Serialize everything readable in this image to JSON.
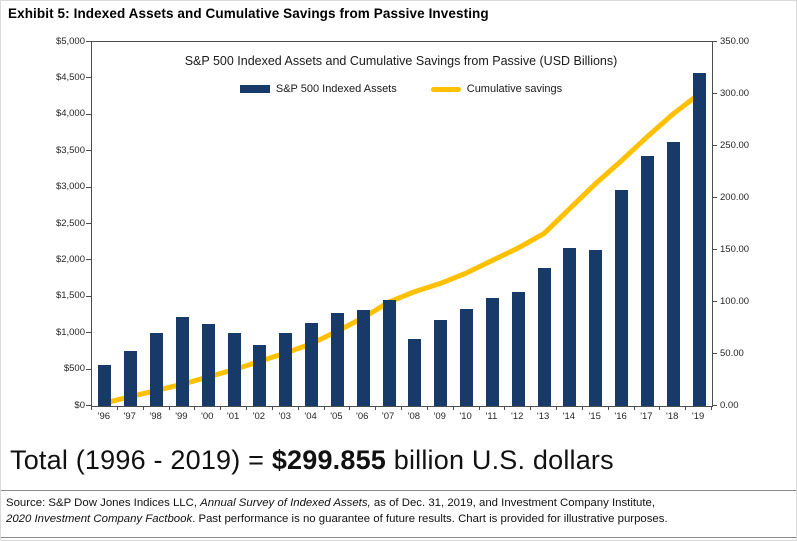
{
  "exhibit_title": "Exhibit 5: Indexed Assets and Cumulative Savings from Passive Investing",
  "chart_data": {
    "type": "combo-bar-line",
    "title": "S&P 500 Indexed Assets and Cumulative Savings from Passive (USD Billions)",
    "categories": [
      "'96",
      "'97",
      "'98",
      "'99",
      "'00",
      "'01",
      "'02",
      "'03",
      "'04",
      "'05",
      "'06",
      "'07",
      "'08",
      "'09",
      "'10",
      "'11",
      "'12",
      "'13",
      "'14",
      "'15",
      "'16",
      "'17",
      "'18",
      "'19"
    ],
    "series": [
      {
        "name": "S&P 500 Indexed Assets",
        "type": "bar",
        "axis": "left",
        "color": "#183A68",
        "values": [
          570,
          760,
          1000,
          1230,
          1130,
          1000,
          840,
          1000,
          1140,
          1280,
          1320,
          1450,
          920,
          1180,
          1330,
          1480,
          1560,
          1890,
          2170,
          2150,
          2970,
          3430,
          3630,
          4580
        ]
      },
      {
        "name": "Cumulative savings",
        "type": "line",
        "axis": "right",
        "color": "#FFC000",
        "values": [
          3,
          9,
          15,
          21,
          28,
          35,
          43,
          51,
          60,
          72,
          85,
          100,
          110,
          118,
          128,
          140,
          152,
          166,
          190,
          214,
          236,
          259,
          281,
          300
        ]
      }
    ],
    "left_axis": {
      "min": 0,
      "max": 5000,
      "tick_step": 500,
      "ticks": [
        "$5,000",
        "$4,500",
        "$4,000",
        "$3,500",
        "$3,000",
        "$2,500",
        "$2,000",
        "$1,500",
        "$1,000",
        "$500",
        "$0"
      ]
    },
    "right_axis": {
      "min": 0,
      "max": 350,
      "tick_step": 50,
      "ticks": [
        "350.00",
        "300.00",
        "250.00",
        "200.00",
        "150.00",
        "100.00",
        "50.00",
        "0.00"
      ]
    },
    "grid": false,
    "legend_position": "top-center"
  },
  "total_line": {
    "segments": [
      {
        "text": "Total (1996 - 2019) = "
      },
      {
        "text": "$299.855",
        "bold": true
      },
      {
        "text": " billion U.S. dollars"
      }
    ]
  },
  "source": {
    "lines": [
      [
        {
          "text": "Source: S&P Dow Jones Indices LLC, "
        },
        {
          "text": "Annual Survey of Indexed Assets,",
          "italic": true
        },
        {
          "text": " as of Dec. 31, 2019, and Investment Company Institute,"
        }
      ],
      [
        {
          "text": "2020 Investment Company Factbook",
          "italic": true
        },
        {
          "text": ". Past performance is no guarantee of future results. Chart is provided for illustrative purposes."
        }
      ]
    ]
  }
}
